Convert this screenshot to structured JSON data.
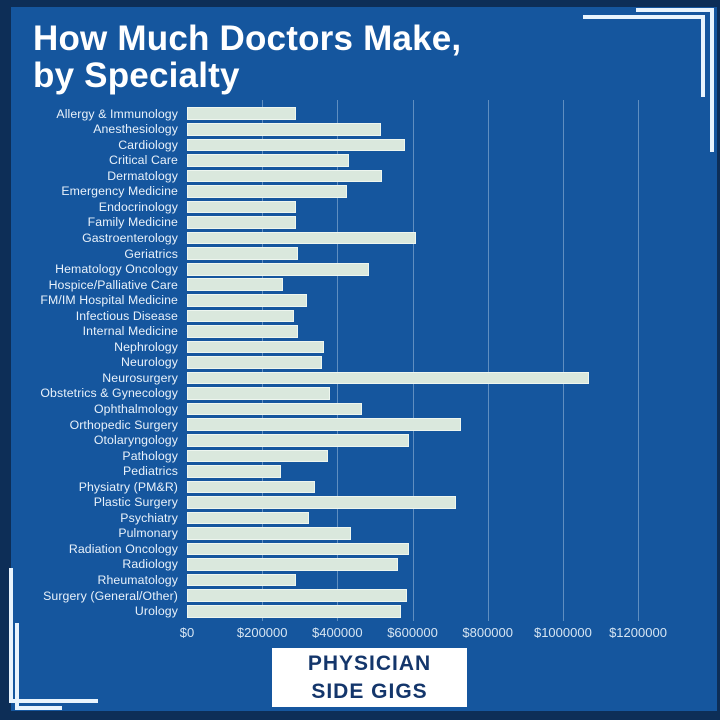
{
  "poster": {
    "title_line1": "How Much Doctors Make,",
    "title_line2": "by Specialty",
    "badge": {
      "line1": "PHYSICIAN",
      "line2": "SIDE GIGS"
    },
    "colors": {
      "border_navy": "#0d2e57",
      "background_blue": "#15569e",
      "bar_fill": "#dae8dd",
      "bar_edge": "#eef6ef",
      "title_text": "#ffffff",
      "label_text": "#e8f1fa",
      "tick_text": "#d5e4f2",
      "frame_line": "#e9f4fd",
      "badge_text": "#14366b"
    }
  },
  "chart_data": {
    "type": "bar",
    "orientation": "horizontal",
    "title": "How Much Doctors Make, by Specialty",
    "xlabel": "",
    "ylabel": "",
    "xlim": [
      0,
      1300000
    ],
    "grid": true,
    "x_ticks": [
      0,
      200000,
      400000,
      600000,
      800000,
      1000000,
      1200000
    ],
    "x_tick_labels": [
      "$0",
      "$200000",
      "$400000",
      "$600000",
      "$800000",
      "$1000000",
      "$1200000"
    ],
    "categories": [
      "Allergy & Immunology",
      "Anesthesiology",
      "Cardiology",
      "Critical Care",
      "Dermatology",
      "Emergency Medicine",
      "Endocrinology",
      "Family Medicine",
      "Gastroenterology",
      "Geriatrics",
      "Hematology Oncology",
      "Hospice/Palliative Care",
      "FM/IM Hospital Medicine",
      "Infectious Disease",
      "Internal Medicine",
      "Nephrology",
      "Neurology",
      "Neurosurgery",
      "Obstetrics & Gynecology",
      "Ophthalmology",
      "Orthopedic Surgery",
      "Otolaryngology",
      "Pathology",
      "Pediatrics",
      "Physiatry (PM&R)",
      "Plastic Surgery",
      "Psychiatry",
      "Pulmonary",
      "Radiation Oncology",
      "Radiology",
      "Rheumatology",
      "Surgery (General/Other)",
      "Urology"
    ],
    "values": [
      290000,
      515000,
      580000,
      430000,
      520000,
      425000,
      290000,
      290000,
      610000,
      295000,
      485000,
      255000,
      320000,
      285000,
      295000,
      365000,
      360000,
      1070000,
      380000,
      465000,
      730000,
      590000,
      375000,
      250000,
      340000,
      715000,
      325000,
      435000,
      590000,
      560000,
      290000,
      585000,
      570000
    ]
  }
}
